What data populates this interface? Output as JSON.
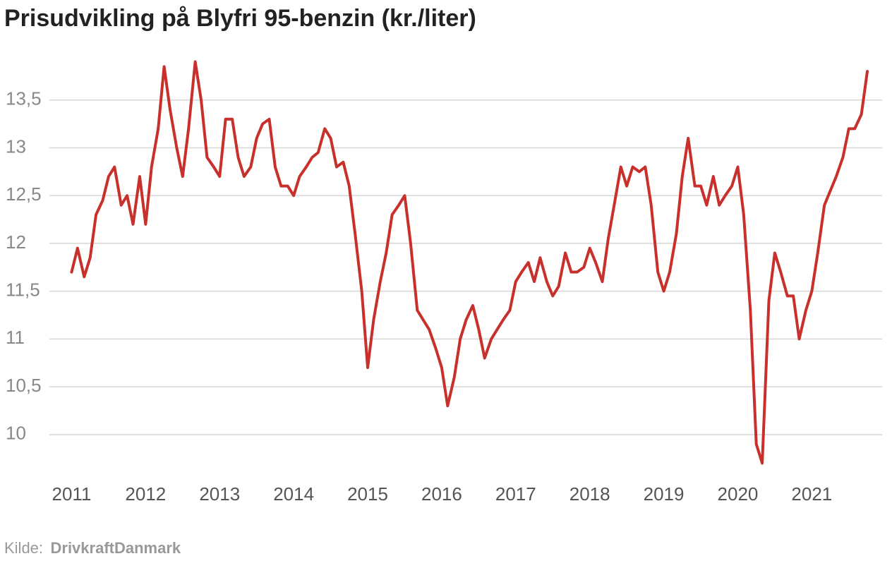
{
  "chart_data": {
    "type": "line",
    "title": "Prisudvikling på Blyfri 95-benzin (kr./liter)",
    "source_label": "Kilde:",
    "source": "DrivkraftDanmark",
    "x": [
      2011,
      2011.08,
      2011.17,
      2011.25,
      2011.33,
      2011.42,
      2011.5,
      2011.58,
      2011.67,
      2011.75,
      2011.83,
      2011.92,
      2012,
      2012.08,
      2012.17,
      2012.25,
      2012.33,
      2012.42,
      2012.5,
      2012.58,
      2012.67,
      2012.75,
      2012.83,
      2012.92,
      2013,
      2013.08,
      2013.17,
      2013.25,
      2013.33,
      2013.42,
      2013.5,
      2013.58,
      2013.67,
      2013.75,
      2013.83,
      2013.92,
      2014,
      2014.08,
      2014.17,
      2014.25,
      2014.33,
      2014.42,
      2014.5,
      2014.58,
      2014.67,
      2014.75,
      2014.83,
      2014.92,
      2015,
      2015.08,
      2015.17,
      2015.25,
      2015.33,
      2015.42,
      2015.5,
      2015.58,
      2015.67,
      2015.75,
      2015.83,
      2015.92,
      2016,
      2016.08,
      2016.17,
      2016.25,
      2016.33,
      2016.42,
      2016.5,
      2016.58,
      2016.67,
      2016.75,
      2016.83,
      2016.92,
      2017,
      2017.08,
      2017.17,
      2017.25,
      2017.33,
      2017.42,
      2017.5,
      2017.58,
      2017.67,
      2017.75,
      2017.83,
      2017.92,
      2018,
      2018.08,
      2018.17,
      2018.25,
      2018.33,
      2018.42,
      2018.5,
      2018.58,
      2018.67,
      2018.75,
      2018.83,
      2018.92,
      2019,
      2019.08,
      2019.17,
      2019.25,
      2019.33,
      2019.42,
      2019.5,
      2019.58,
      2019.67,
      2019.75,
      2019.83,
      2019.92,
      2020,
      2020.08,
      2020.17,
      2020.25,
      2020.33,
      2020.42,
      2020.5,
      2020.58,
      2020.67,
      2020.75,
      2020.83,
      2020.92,
      2021,
      2021.08,
      2021.17,
      2021.25,
      2021.33,
      2021.42,
      2021.5,
      2021.58,
      2021.67,
      2021.75
    ],
    "series": [
      {
        "name": "Blyfri 95",
        "color": "#c8302c",
        "values": [
          11.7,
          11.95,
          11.65,
          11.85,
          12.3,
          12.45,
          12.7,
          12.8,
          12.4,
          12.5,
          12.2,
          12.7,
          12.2,
          12.8,
          13.2,
          13.85,
          13.4,
          13.0,
          12.7,
          13.2,
          13.9,
          13.5,
          12.9,
          12.8,
          12.7,
          13.3,
          13.3,
          12.9,
          12.7,
          12.8,
          13.1,
          13.25,
          13.3,
          12.8,
          12.6,
          12.6,
          12.5,
          12.7,
          12.8,
          12.9,
          12.95,
          13.2,
          13.1,
          12.8,
          12.85,
          12.6,
          12.1,
          11.5,
          10.7,
          11.2,
          11.6,
          11.9,
          12.3,
          12.4,
          12.5,
          12.0,
          11.3,
          11.2,
          11.1,
          10.9,
          10.7,
          10.3,
          10.6,
          11.0,
          11.2,
          11.35,
          11.1,
          10.8,
          11.0,
          11.1,
          11.2,
          11.3,
          11.6,
          11.7,
          11.8,
          11.6,
          11.85,
          11.6,
          11.45,
          11.55,
          11.9,
          11.7,
          11.7,
          11.75,
          11.95,
          11.8,
          11.6,
          12.05,
          12.4,
          12.8,
          12.6,
          12.8,
          12.75,
          12.8,
          12.4,
          11.7,
          11.5,
          11.7,
          12.1,
          12.7,
          13.1,
          12.6,
          12.6,
          12.4,
          12.7,
          12.4,
          12.5,
          12.6,
          12.8,
          12.3,
          11.3,
          9.9,
          9.7,
          11.4,
          11.9,
          11.7,
          11.45,
          11.45,
          11.0,
          11.3,
          11.5,
          11.9,
          12.4,
          12.55,
          12.7,
          12.9,
          13.2,
          13.2,
          13.35,
          13.8
        ]
      }
    ],
    "xlim": [
      2010.7,
      2021.95
    ],
    "xticks": [
      2011,
      2012,
      2013,
      2014,
      2015,
      2016,
      2017,
      2018,
      2019,
      2020,
      2021
    ],
    "ylim": [
      9.6,
      14.0
    ],
    "yticks": [
      10,
      {
        "value": 10.5,
        "label": "10,5"
      },
      11,
      {
        "value": 11.5,
        "label": "11,5"
      },
      12,
      {
        "value": 12.5,
        "label": "12,5"
      },
      13,
      {
        "value": 13.5,
        "label": "13,5"
      }
    ],
    "grid": true
  }
}
